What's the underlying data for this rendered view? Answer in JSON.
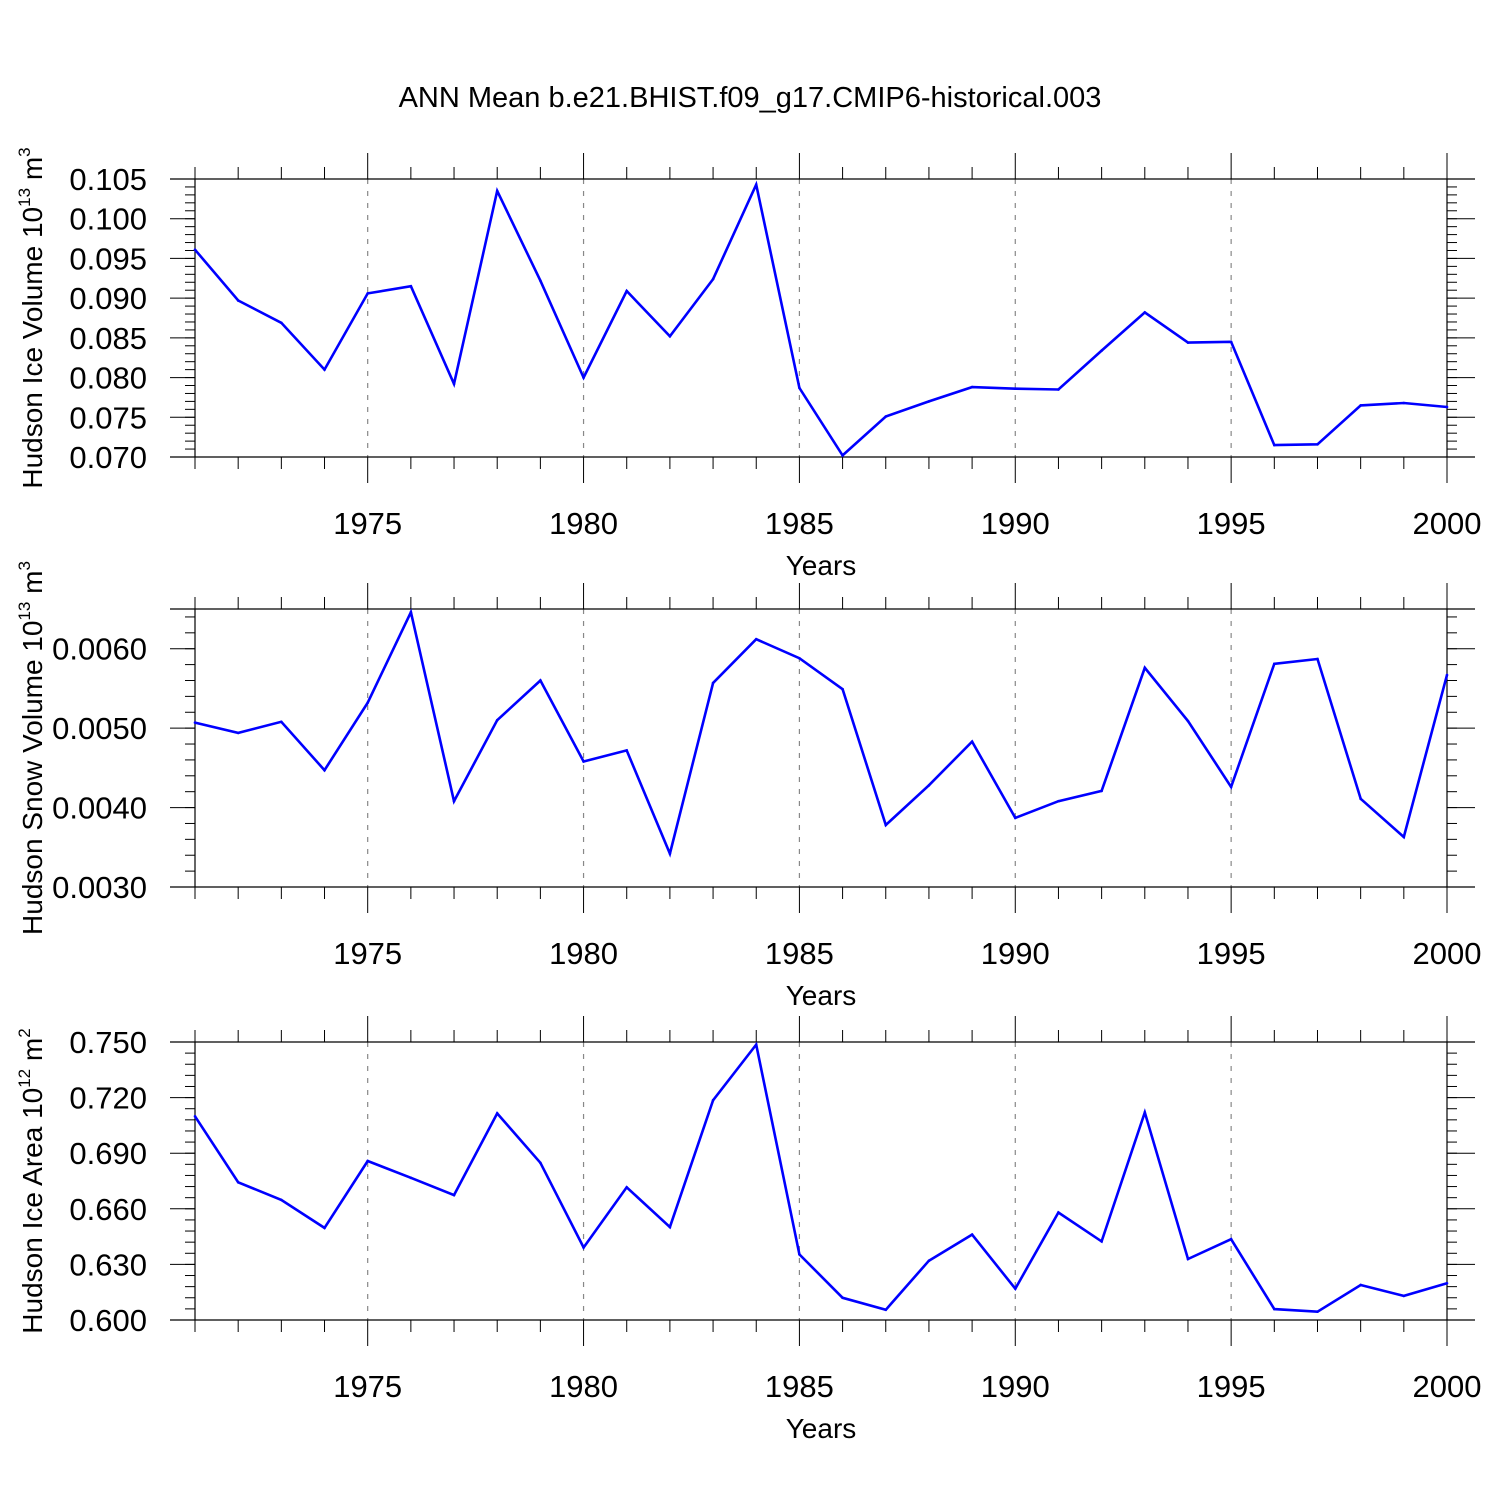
{
  "title": "ANN Mean b.e21.BHIST.f09_g17.CMIP6-historical.003",
  "colors": {
    "series": "#0000ff",
    "axis": "#000000",
    "grid": "#888888"
  },
  "chart_data": [
    {
      "type": "line",
      "ylabel": "Hudson Ice Volume",
      "ylabel_unit_base": "10",
      "ylabel_unit_exp": "13",
      "ylabel_unit_dim": "m",
      "ylabel_unit_dim_exp": "3",
      "xlabel": "Years",
      "xlim": [
        1971,
        2000
      ],
      "ylim": [
        0.07,
        0.105
      ],
      "x_ticks": [
        1975,
        1980,
        1985,
        1990,
        1995,
        2000
      ],
      "y_ticks": [
        "0.070",
        "0.075",
        "0.080",
        "0.085",
        "0.090",
        "0.095",
        "0.100",
        "0.105"
      ],
      "grid": "vertical dashed at major x ticks",
      "x": [
        1971,
        1972,
        1973,
        1974,
        1975,
        1976,
        1977,
        1978,
        1979,
        1980,
        1981,
        1982,
        1983,
        1984,
        1985,
        1986,
        1987,
        1988,
        1989,
        1990,
        1991,
        1992,
        1993,
        1994,
        1995,
        1996,
        1997,
        1998,
        1999,
        2000
      ],
      "values": [
        0.0961,
        0.0897,
        0.0869,
        0.081,
        0.0906,
        0.0915,
        0.0792,
        0.1035,
        0.0922,
        0.08,
        0.0909,
        0.0852,
        0.0924,
        0.1043,
        0.0787,
        0.0702,
        0.0751,
        0.077,
        0.0788,
        0.0786,
        0.0785,
        0.0834,
        0.0882,
        0.0844,
        0.0845,
        0.0715,
        0.0716,
        0.0765,
        0.0768,
        0.0763
      ]
    },
    {
      "type": "line",
      "ylabel": "Hudson Snow Volume",
      "ylabel_unit_base": "10",
      "ylabel_unit_exp": "13",
      "ylabel_unit_dim": "m",
      "ylabel_unit_dim_exp": "3",
      "xlabel": "Years",
      "xlim": [
        1971,
        2000
      ],
      "ylim": [
        0.003,
        0.0065
      ],
      "x_ticks": [
        1975,
        1980,
        1985,
        1990,
        1995,
        2000
      ],
      "y_ticks": [
        "0.0030",
        "0.0040",
        "0.0050",
        "0.0060"
      ],
      "grid": "vertical dashed at major x ticks",
      "x": [
        1971,
        1972,
        1973,
        1974,
        1975,
        1976,
        1977,
        1978,
        1979,
        1980,
        1981,
        1982,
        1983,
        1984,
        1985,
        1986,
        1987,
        1988,
        1989,
        1990,
        1991,
        1992,
        1993,
        1994,
        1995,
        1996,
        1997,
        1998,
        1999,
        2000
      ],
      "values": [
        0.00507,
        0.00494,
        0.00508,
        0.00447,
        0.00532,
        0.00646,
        0.00408,
        0.0051,
        0.0056,
        0.00458,
        0.00472,
        0.00342,
        0.00557,
        0.00612,
        0.00588,
        0.00549,
        0.00378,
        0.00428,
        0.00483,
        0.00387,
        0.00408,
        0.00421,
        0.00576,
        0.00509,
        0.00426,
        0.00581,
        0.00587,
        0.00411,
        0.00363,
        0.00567
      ]
    },
    {
      "type": "line",
      "ylabel": "Hudson Ice Area",
      "ylabel_unit_base": "10",
      "ylabel_unit_exp": "12",
      "ylabel_unit_dim": "m",
      "ylabel_unit_dim_exp": "2",
      "xlabel": "Years",
      "xlim": [
        1971,
        2000
      ],
      "ylim": [
        0.6,
        0.75
      ],
      "x_ticks": [
        1975,
        1980,
        1985,
        1990,
        1995,
        2000
      ],
      "y_ticks": [
        "0.600",
        "0.630",
        "0.660",
        "0.690",
        "0.720",
        "0.750"
      ],
      "grid": "vertical dashed at major x ticks",
      "x": [
        1971,
        1972,
        1973,
        1974,
        1975,
        1976,
        1977,
        1978,
        1979,
        1980,
        1981,
        1982,
        1983,
        1984,
        1985,
        1986,
        1987,
        1988,
        1989,
        1990,
        1991,
        1992,
        1993,
        1994,
        1995,
        1996,
        1997,
        1998,
        1999,
        2000
      ],
      "values": [
        0.7099,
        0.6743,
        0.6648,
        0.6497,
        0.6858,
        0.6767,
        0.6674,
        0.7115,
        0.6848,
        0.6391,
        0.6716,
        0.6501,
        0.7186,
        0.7486,
        0.6354,
        0.612,
        0.6055,
        0.632,
        0.6461,
        0.6169,
        0.658,
        0.6424,
        0.712,
        0.6329,
        0.6436,
        0.6059,
        0.6045,
        0.6189,
        0.613,
        0.6198
      ]
    }
  ]
}
